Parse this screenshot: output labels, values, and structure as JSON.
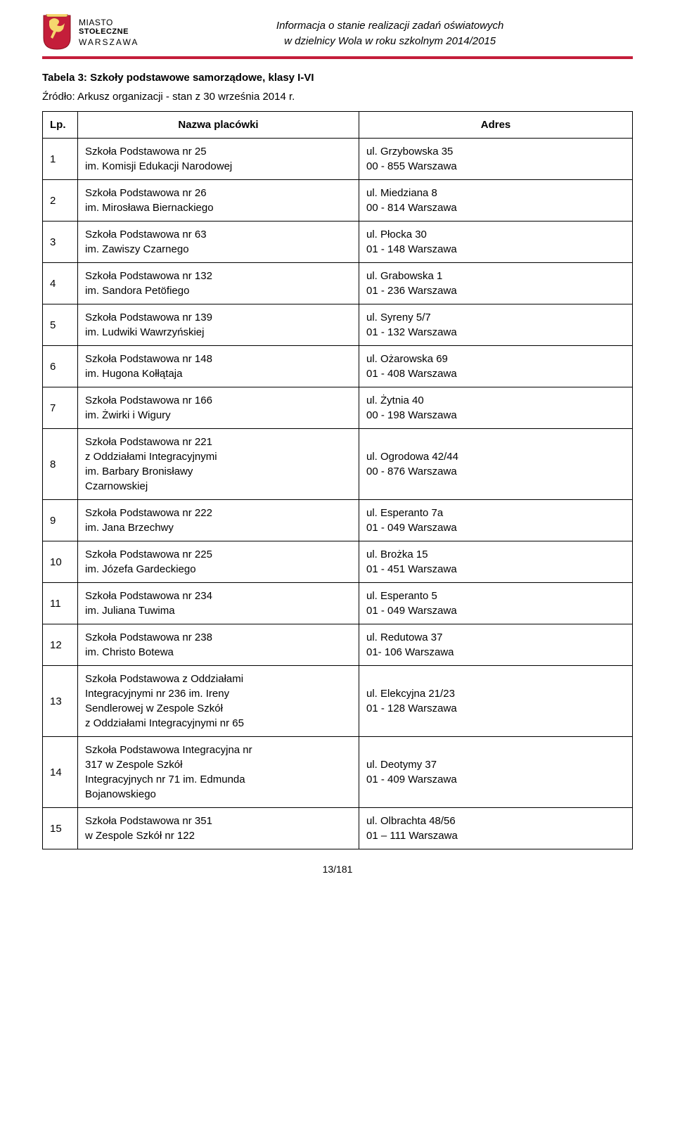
{
  "header": {
    "city_line1": "MIASTO",
    "city_line2": "STOŁECZNE",
    "city_line3": "WARSZAWA",
    "doc_title_line1": "Informacja o stanie realizacji zadań oświatowych",
    "doc_title_line2": "w dzielnicy Wola w roku szkolnym 2014/2015"
  },
  "table_title": "Tabela 3: Szkoły podstawowe samorządowe, klasy I-VI",
  "source_line": "Źródło: Arkusz organizacji - stan z 30 września 2014 r.",
  "columns": {
    "lp": "Lp.",
    "name": "Nazwa placówki",
    "address": "Adres"
  },
  "rows": [
    {
      "lp": "1",
      "name": "Szkoła Podstawowa nr 25\nim. Komisji Edukacji Narodowej",
      "address": "ul. Grzybowska 35\n00 - 855 Warszawa"
    },
    {
      "lp": "2",
      "name": "Szkoła Podstawowa nr 26\nim. Mirosława Biernackiego",
      "address": "ul. Miedziana 8\n00 - 814 Warszawa"
    },
    {
      "lp": "3",
      "name": "Szkoła Podstawowa nr 63\nim. Zawiszy Czarnego",
      "address": "ul. Płocka 30\n01 - 148 Warszawa"
    },
    {
      "lp": "4",
      "name": "Szkoła Podstawowa nr 132\nim. Sandora Petöfiego",
      "address": "ul. Grabowska 1\n01 - 236 Warszawa"
    },
    {
      "lp": "5",
      "name": "Szkoła Podstawowa nr 139\nim. Ludwiki Wawrzyńskiej",
      "address": "ul. Syreny 5/7\n01 - 132 Warszawa"
    },
    {
      "lp": "6",
      "name": "Szkoła Podstawowa nr 148\nim. Hugona Kołłątaja",
      "address": "ul. Ożarowska 69\n01 - 408 Warszawa"
    },
    {
      "lp": "7",
      "name": "Szkoła Podstawowa nr 166\nim. Żwirki i Wigury",
      "address": "ul. Żytnia 40\n00 - 198 Warszawa"
    },
    {
      "lp": "8",
      "name": "Szkoła Podstawowa nr 221\nz Oddziałami Integracyjnymi\nim. Barbary Bronisławy\nCzarnowskiej",
      "address": "ul. Ogrodowa 42/44\n00 - 876 Warszawa"
    },
    {
      "lp": "9",
      "name": "Szkoła Podstawowa nr 222\nim. Jana Brzechwy",
      "address": "ul. Esperanto 7a\n01 - 049 Warszawa"
    },
    {
      "lp": "10",
      "name": "Szkoła Podstawowa nr 225\nim. Józefa Gardeckiego",
      "address": "ul. Brożka 15\n01 - 451 Warszawa"
    },
    {
      "lp": "11",
      "name": "Szkoła Podstawowa nr 234\nim. Juliana Tuwima",
      "address": "ul. Esperanto 5\n01 - 049 Warszawa"
    },
    {
      "lp": "12",
      "name": "Szkoła Podstawowa nr 238\nim. Christo Botewa",
      "address": "ul. Redutowa 37\n01- 106 Warszawa"
    },
    {
      "lp": "13",
      "name": "Szkoła Podstawowa z Oddziałami\nIntegracyjnymi nr 236 im. Ireny\nSendlerowej w Zespole Szkół\nz Oddziałami Integracyjnymi nr 65",
      "address": "ul. Elekcyjna 21/23\n01 - 128 Warszawa"
    },
    {
      "lp": "14",
      "name": "Szkoła Podstawowa Integracyjna nr\n317 w Zespole Szkół\nIntegracyjnych nr 71 im. Edmunda\nBojanowskiego",
      "address": "ul. Deotymy 37\n01 - 409 Warszawa"
    },
    {
      "lp": "15",
      "name": "Szkoła Podstawowa nr 351\nw Zespole Szkół nr 122",
      "address": "ul. Olbrachta 48/56\n01 – 111 Warszawa"
    }
  ],
  "page_number": "13/181",
  "colors": {
    "red_bar": "#c41e3a",
    "border": "#000000",
    "text": "#000000",
    "bg": "#ffffff"
  }
}
